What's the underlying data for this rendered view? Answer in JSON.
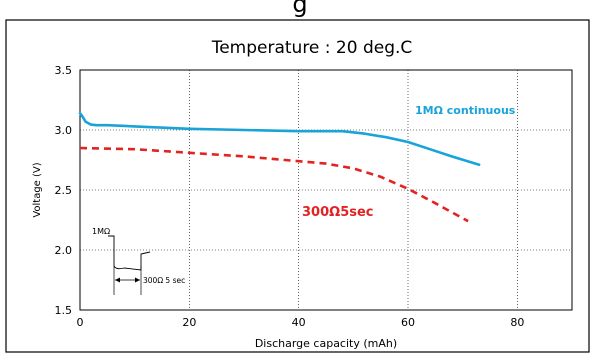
{
  "chart_data": {
    "type": "line",
    "header_partial": "g",
    "title": "Temperature : 20 deg.C",
    "xlabel": "Discharge capacity (mAh)",
    "ylabel": "Voltage (V)",
    "xlim": [
      0,
      90
    ],
    "ylim": [
      1.5,
      3.5
    ],
    "xticks": [
      "0",
      "20",
      "40",
      "60",
      "80"
    ],
    "yticks": [
      "1.5",
      "2.0",
      "2.5",
      "3.0",
      "3.5"
    ],
    "grid": true,
    "series": [
      {
        "name": "1MΩ continuous",
        "color": "#1aa3d9",
        "style": "solid",
        "x": [
          0,
          0.5,
          1,
          2,
          3,
          5,
          10,
          20,
          30,
          40,
          45,
          48,
          52,
          56,
          60,
          64,
          68,
          73
        ],
        "y": [
          3.14,
          3.11,
          3.07,
          3.045,
          3.04,
          3.04,
          3.03,
          3.01,
          3.0,
          2.99,
          2.99,
          2.99,
          2.97,
          2.94,
          2.9,
          2.84,
          2.78,
          2.71
        ]
      },
      {
        "name": "300Ω5sec",
        "color": "#e32222",
        "style": "dashed",
        "x": [
          0,
          10,
          20,
          30,
          40,
          45,
          50,
          55,
          60,
          65,
          71
        ],
        "y": [
          2.85,
          2.84,
          2.81,
          2.78,
          2.74,
          2.72,
          2.68,
          2.61,
          2.51,
          2.39,
          2.24
        ]
      }
    ],
    "inset": {
      "label_top": "1MΩ",
      "label_side": "300Ω 5 sec"
    }
  }
}
